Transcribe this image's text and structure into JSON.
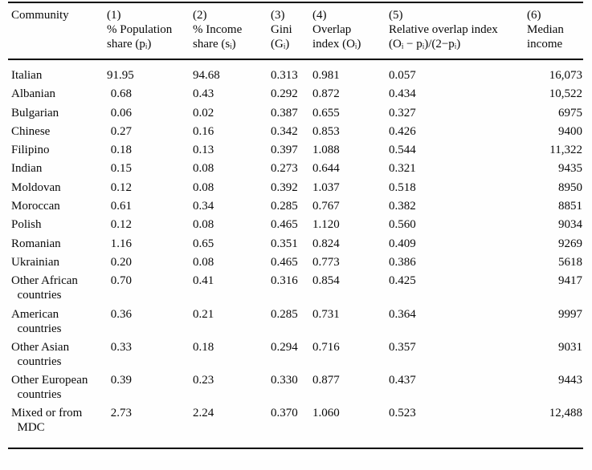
{
  "table": {
    "headers": [
      "Community",
      "(1)\n% Population\nshare (pᵢ)",
      "(2)\n% Income\nshare (sᵢ)",
      "(3)\nGini\n(Gᵢ)",
      "(4)\nOverlap\nindex (Oᵢ)",
      "(5)\nRelative overlap index\n(Oᵢ − pᵢ)/(2−pᵢ)",
      "(6)\nMedian\nincome"
    ],
    "rows": [
      {
        "community": "Italian",
        "pop": "91.95",
        "income": "94.68",
        "gini": "0.313",
        "overlap": "0.981",
        "rel": "0.057",
        "median": "16,073"
      },
      {
        "community": "Albanian",
        "pop": "0.68",
        "income": "0.43",
        "gini": "0.292",
        "overlap": "0.872",
        "rel": "0.434",
        "median": "10,522"
      },
      {
        "community": "Bulgarian",
        "pop": "0.06",
        "income": "0.02",
        "gini": "0.387",
        "overlap": "0.655",
        "rel": "0.327",
        "median": "6975"
      },
      {
        "community": "Chinese",
        "pop": "0.27",
        "income": "0.16",
        "gini": "0.342",
        "overlap": "0.853",
        "rel": "0.426",
        "median": "9400"
      },
      {
        "community": "Filipino",
        "pop": "0.18",
        "income": "0.13",
        "gini": "0.397",
        "overlap": "1.088",
        "rel": "0.544",
        "median": "11,322"
      },
      {
        "community": "Indian",
        "pop": "0.15",
        "income": "0.08",
        "gini": "0.273",
        "overlap": "0.644",
        "rel": "0.321",
        "median": "9435"
      },
      {
        "community": "Moldovan",
        "pop": "0.12",
        "income": "0.08",
        "gini": "0.392",
        "overlap": "1.037",
        "rel": "0.518",
        "median": "8950"
      },
      {
        "community": "Moroccan",
        "pop": "0.61",
        "income": "0.34",
        "gini": "0.285",
        "overlap": "0.767",
        "rel": "0.382",
        "median": "8851"
      },
      {
        "community": "Polish",
        "pop": "0.12",
        "income": "0.08",
        "gini": "0.465",
        "overlap": "1.120",
        "rel": "0.560",
        "median": "9034"
      },
      {
        "community": "Romanian",
        "pop": "1.16",
        "income": "0.65",
        "gini": "0.351",
        "overlap": "0.824",
        "rel": "0.409",
        "median": "9269"
      },
      {
        "community": "Ukrainian",
        "pop": "0.20",
        "income": "0.08",
        "gini": "0.465",
        "overlap": "0.773",
        "rel": "0.386",
        "median": "5618"
      },
      {
        "community": "Other African\n  countries",
        "pop": "0.70",
        "income": "0.41",
        "gini": "0.316",
        "overlap": "0.854",
        "rel": "0.425",
        "median": "9417"
      },
      {
        "community": "American\n  countries",
        "pop": "0.36",
        "income": "0.21",
        "gini": "0.285",
        "overlap": "0.731",
        "rel": "0.364",
        "median": "9997"
      },
      {
        "community": "Other Asian\n  countries",
        "pop": "0.33",
        "income": "0.18",
        "gini": "0.294",
        "overlap": "0.716",
        "rel": "0.357",
        "median": "9031"
      },
      {
        "community": "Other European\n  countries",
        "pop": "0.39",
        "income": "0.23",
        "gini": "0.330",
        "overlap": "0.877",
        "rel": "0.437",
        "median": "9443"
      },
      {
        "community": "Mixed or from\n  MDC",
        "pop": "2.73",
        "income": "2.24",
        "gini": "0.370",
        "overlap": "1.060",
        "rel": "0.523",
        "median": "12,488"
      }
    ]
  }
}
